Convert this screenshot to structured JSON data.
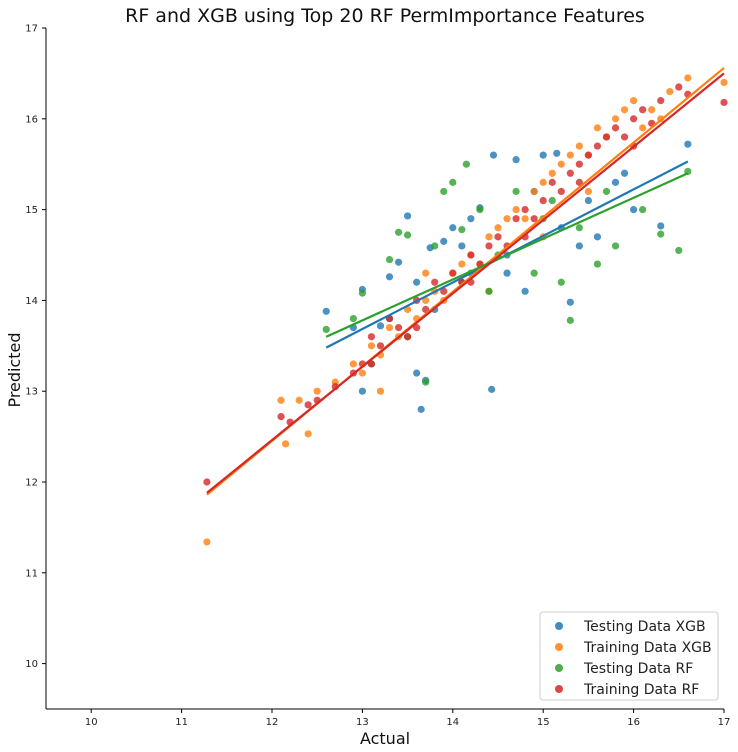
{
  "chart_data": {
    "type": "scatter",
    "title": "RF and XGB using Top 20 RF PermImportance Features",
    "xlabel": "Actual",
    "ylabel": "Predicted",
    "xlim": [
      9.5,
      17
    ],
    "ylim": [
      9.5,
      17
    ],
    "xticks": [
      "10",
      "11",
      "12",
      "13",
      "14",
      "15",
      "16",
      "17"
    ],
    "yticks": [
      "10",
      "11",
      "12",
      "13",
      "14",
      "15",
      "16",
      "17"
    ],
    "grid": false,
    "legend_position": "bottom-right",
    "series": [
      {
        "name": "Testing Data XGB",
        "color": "#1f77b4",
        "regression": {
          "x": [
            12.6,
            16.6
          ],
          "y": [
            13.48,
            15.53
          ]
        },
        "points": [
          [
            12.6,
            13.88
          ],
          [
            12.9,
            13.7
          ],
          [
            13.0,
            13.0
          ],
          [
            13.0,
            14.12
          ],
          [
            13.2,
            13.72
          ],
          [
            13.3,
            14.26
          ],
          [
            13.4,
            14.42
          ],
          [
            13.5,
            14.93
          ],
          [
            13.6,
            13.2
          ],
          [
            13.65,
            12.8
          ],
          [
            13.7,
            13.12
          ],
          [
            13.75,
            14.58
          ],
          [
            13.8,
            13.9
          ],
          [
            13.9,
            14.65
          ],
          [
            14.0,
            14.8
          ],
          [
            14.1,
            14.2
          ],
          [
            14.2,
            14.9
          ],
          [
            14.3,
            15.02
          ],
          [
            14.43,
            13.02
          ],
          [
            14.45,
            15.6
          ],
          [
            14.6,
            14.5
          ],
          [
            14.7,
            15.55
          ],
          [
            14.8,
            14.1
          ],
          [
            14.9,
            15.2
          ],
          [
            15.0,
            15.6
          ],
          [
            15.15,
            15.62
          ],
          [
            15.3,
            13.98
          ],
          [
            15.4,
            14.6
          ],
          [
            15.5,
            15.1
          ],
          [
            15.6,
            14.7
          ],
          [
            15.8,
            15.3
          ],
          [
            16.0,
            15.0
          ],
          [
            16.3,
            14.82
          ],
          [
            16.6,
            15.72
          ],
          [
            13.3,
            13.8
          ],
          [
            13.6,
            14.2
          ],
          [
            14.1,
            14.6
          ],
          [
            14.6,
            14.3
          ],
          [
            15.2,
            14.8
          ],
          [
            15.9,
            15.4
          ]
        ]
      },
      {
        "name": "Training Data XGB",
        "color": "#ff7f0e",
        "regression": {
          "x": [
            11.28,
            17.0
          ],
          "y": [
            11.86,
            16.56
          ]
        },
        "points": [
          [
            11.28,
            11.34
          ],
          [
            12.1,
            12.9
          ],
          [
            12.15,
            12.42
          ],
          [
            12.3,
            12.9
          ],
          [
            12.4,
            12.53
          ],
          [
            12.5,
            13.0
          ],
          [
            12.7,
            13.1
          ],
          [
            12.9,
            13.3
          ],
          [
            13.0,
            13.2
          ],
          [
            13.1,
            13.5
          ],
          [
            13.2,
            13.4
          ],
          [
            13.3,
            13.7
          ],
          [
            13.4,
            13.6
          ],
          [
            13.5,
            13.9
          ],
          [
            13.6,
            13.8
          ],
          [
            13.7,
            14.0
          ],
          [
            13.8,
            14.1
          ],
          [
            13.9,
            14.0
          ],
          [
            14.0,
            14.3
          ],
          [
            14.1,
            14.4
          ],
          [
            14.2,
            14.5
          ],
          [
            14.3,
            14.4
          ],
          [
            14.4,
            14.7
          ],
          [
            14.5,
            14.8
          ],
          [
            14.6,
            14.9
          ],
          [
            14.7,
            15.0
          ],
          [
            14.8,
            14.9
          ],
          [
            14.9,
            15.2
          ],
          [
            15.0,
            15.3
          ],
          [
            15.1,
            15.4
          ],
          [
            15.2,
            15.5
          ],
          [
            15.3,
            15.6
          ],
          [
            15.4,
            15.7
          ],
          [
            15.5,
            15.6
          ],
          [
            15.6,
            15.9
          ],
          [
            15.7,
            15.8
          ],
          [
            15.8,
            16.0
          ],
          [
            15.9,
            16.1
          ],
          [
            16.0,
            16.2
          ],
          [
            16.2,
            16.1
          ],
          [
            16.4,
            16.3
          ],
          [
            16.6,
            16.45
          ],
          [
            17.0,
            16.4
          ],
          [
            13.2,
            13.0
          ],
          [
            13.7,
            14.3
          ],
          [
            14.4,
            14.1
          ],
          [
            15.0,
            14.7
          ],
          [
            15.5,
            15.2
          ],
          [
            16.1,
            15.9
          ],
          [
            16.3,
            16.0
          ]
        ]
      },
      {
        "name": "Testing Data RF",
        "color": "#2ca02c",
        "regression": {
          "x": [
            12.6,
            16.6
          ],
          "y": [
            13.6,
            15.4
          ]
        },
        "points": [
          [
            12.6,
            13.68
          ],
          [
            12.9,
            13.8
          ],
          [
            13.0,
            14.08
          ],
          [
            13.1,
            13.3
          ],
          [
            13.3,
            14.45
          ],
          [
            13.4,
            14.75
          ],
          [
            13.5,
            14.72
          ],
          [
            13.7,
            13.1
          ],
          [
            13.8,
            14.6
          ],
          [
            13.9,
            15.2
          ],
          [
            14.0,
            15.3
          ],
          [
            14.1,
            14.78
          ],
          [
            14.15,
            15.5
          ],
          [
            14.2,
            14.3
          ],
          [
            14.3,
            15.0
          ],
          [
            14.5,
            14.5
          ],
          [
            14.7,
            15.2
          ],
          [
            14.9,
            14.3
          ],
          [
            15.0,
            14.9
          ],
          [
            15.2,
            14.2
          ],
          [
            15.3,
            13.78
          ],
          [
            15.4,
            14.8
          ],
          [
            15.6,
            14.4
          ],
          [
            15.8,
            14.6
          ],
          [
            16.1,
            15.0
          ],
          [
            16.3,
            14.73
          ],
          [
            16.5,
            14.55
          ],
          [
            16.6,
            15.42
          ],
          [
            13.5,
            13.6
          ],
          [
            14.4,
            14.1
          ],
          [
            15.1,
            15.1
          ],
          [
            15.7,
            15.2
          ]
        ]
      },
      {
        "name": "Training Data RF",
        "color": "#d62728",
        "regression": {
          "x": [
            11.28,
            17.0
          ],
          "y": [
            11.88,
            16.5
          ]
        },
        "points": [
          [
            11.28,
            12.0
          ],
          [
            12.1,
            12.72
          ],
          [
            12.2,
            12.66
          ],
          [
            12.4,
            12.85
          ],
          [
            12.5,
            12.9
          ],
          [
            12.7,
            13.05
          ],
          [
            12.9,
            13.2
          ],
          [
            13.0,
            13.3
          ],
          [
            13.1,
            13.6
          ],
          [
            13.2,
            13.5
          ],
          [
            13.3,
            13.8
          ],
          [
            13.4,
            13.7
          ],
          [
            13.5,
            13.6
          ],
          [
            13.6,
            14.0
          ],
          [
            13.7,
            13.9
          ],
          [
            13.8,
            14.2
          ],
          [
            13.9,
            14.1
          ],
          [
            14.0,
            14.3
          ],
          [
            14.1,
            14.2
          ],
          [
            14.2,
            14.5
          ],
          [
            14.3,
            14.4
          ],
          [
            14.4,
            14.6
          ],
          [
            14.5,
            14.7
          ],
          [
            14.6,
            14.6
          ],
          [
            14.7,
            14.9
          ],
          [
            14.8,
            15.0
          ],
          [
            14.9,
            14.9
          ],
          [
            15.0,
            15.1
          ],
          [
            15.1,
            15.3
          ],
          [
            15.2,
            15.2
          ],
          [
            15.3,
            15.4
          ],
          [
            15.4,
            15.5
          ],
          [
            15.5,
            15.6
          ],
          [
            15.6,
            15.7
          ],
          [
            15.7,
            15.8
          ],
          [
            15.8,
            15.9
          ],
          [
            15.9,
            15.8
          ],
          [
            16.0,
            16.0
          ],
          [
            16.1,
            16.1
          ],
          [
            16.2,
            15.95
          ],
          [
            16.3,
            16.2
          ],
          [
            16.5,
            16.35
          ],
          [
            16.6,
            16.27
          ],
          [
            17.0,
            16.18
          ],
          [
            13.1,
            13.3
          ],
          [
            13.6,
            13.7
          ],
          [
            14.2,
            14.2
          ],
          [
            14.8,
            14.7
          ],
          [
            15.4,
            15.3
          ],
          [
            16.0,
            15.7
          ]
        ]
      }
    ]
  }
}
